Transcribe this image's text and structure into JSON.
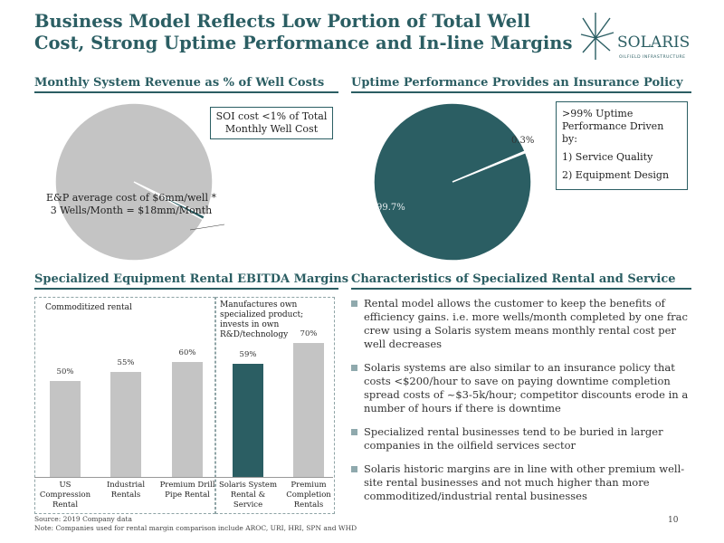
{
  "title": "Business Model Reflects Low Portion of Total Well Cost, Strong Uptime Performance and In-line Margins",
  "logo": {
    "name": "SOLARIS",
    "tagline": "OILFIELD INFRASTRUCTURE"
  },
  "sections": {
    "revenue": "Monthly System Revenue as % of Well Costs",
    "uptime": "Uptime Performance Provides an Insurance Policy",
    "margins": "Specialized Equipment Rental EBITDA Margins",
    "characteristics": "Characteristics of Specialized Rental and Service"
  },
  "revenue_pie": {
    "callout": "SOI cost <1% of Total Monthly Well Cost",
    "inner_label": "E&P average cost of $6mm/well * 3 Wells/Month = $18mm/Month"
  },
  "uptime_pie": {
    "label_small": "0.3%",
    "label_large": "99.7%",
    "callout_title": ">99% Uptime Performance Driven by:",
    "callout_items": [
      "1)   Service Quality",
      "2)   Equipment Design"
    ]
  },
  "bar_annotations": {
    "left": "Commoditized rental",
    "right": "Manufactures own specialized product; invests in own R&D/technology"
  },
  "bullets": [
    "Rental model allows the customer to keep the benefits of efficiency gains. i.e. more wells/month completed by one frac crew using a Solaris system means monthly rental cost per well decreases",
    "Solaris systems are also similar to an insurance policy that costs <$200/hour to save on paying downtime completion spread costs of ~$3-5k/hour; competitor discounts erode in a number of hours if there is downtime",
    "Specialized rental businesses tend to be buried in larger companies in the oilfield services sector",
    "Solaris historic margins are in line with other premium well-site rental businesses and not much higher than more commoditized/industrial rental businesses"
  ],
  "footnotes": {
    "source": "Source: 2019 Company data",
    "note": "Note: Companies used for rental margin comparison include AROC, URI, HRI, SPN and WHD"
  },
  "page_number": "10",
  "colors": {
    "teal": "#2b5e63",
    "gray": "#c4c4c4",
    "bar_teal": "#2b5e63"
  },
  "chart_data": [
    {
      "type": "pie",
      "slices": [
        {
          "label": "E&P average cost of $6mm/well * 3 Wells/Month = $18mm/Month",
          "value": 99.2
        },
        {
          "label": "SOI cost <1% of Total Monthly Well Cost",
          "value": 0.8
        }
      ]
    },
    {
      "type": "pie",
      "slices": [
        {
          "label": "99.7%",
          "value": 99.7
        },
        {
          "label": "0.3%",
          "value": 0.3
        }
      ]
    },
    {
      "type": "bar",
      "categories": [
        "US Compression Rental",
        "Industrial Rentals",
        "Premium Drill Pipe Rental",
        "Solaris System Rental & Service",
        "Premium Completion Rentals"
      ],
      "values": [
        50,
        55,
        60,
        59,
        70
      ],
      "value_labels": [
        "50%",
        "55%",
        "60%",
        "59%",
        "70%"
      ],
      "highlight": "Solaris System Rental & Service",
      "ylim": [
        0,
        85
      ]
    }
  ]
}
